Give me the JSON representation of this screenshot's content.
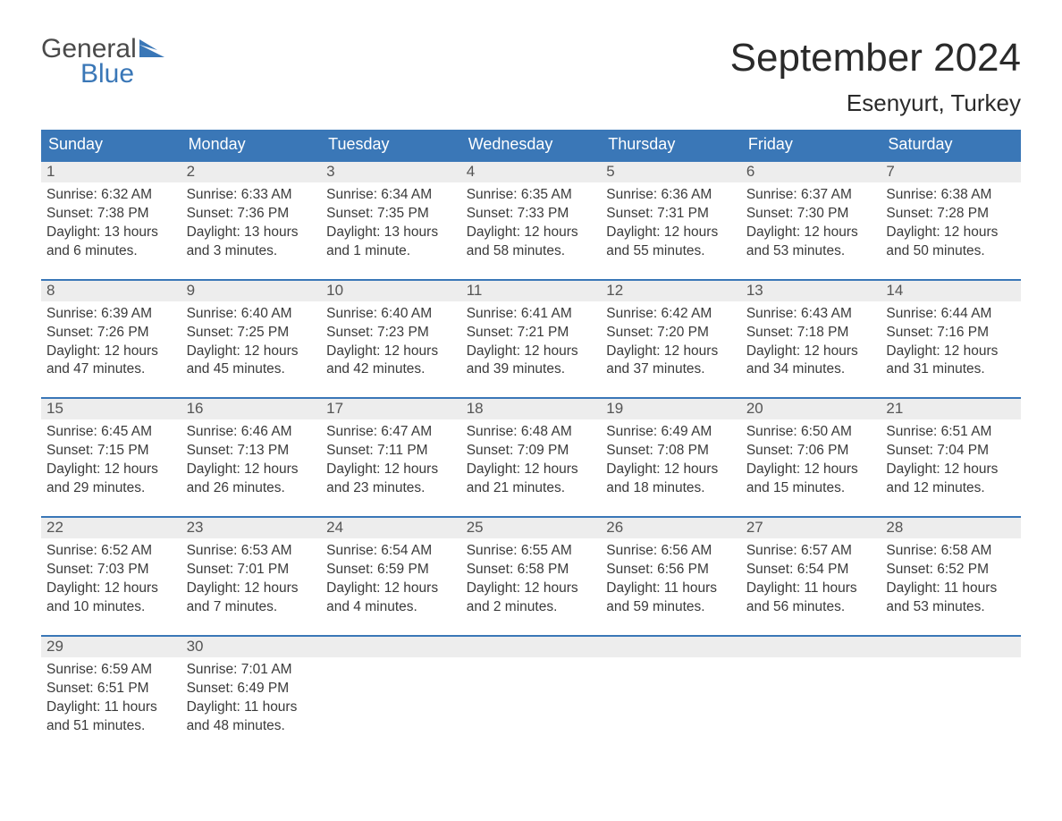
{
  "logo": {
    "line1": "General",
    "line2": "Blue"
  },
  "header": {
    "month": "September 2024",
    "location": "Esenyurt, Turkey"
  },
  "colors": {
    "brand_blue": "#3a77b7",
    "header_bg": "#3a77b7",
    "header_text": "#ffffff",
    "daynum_bg": "#ededed",
    "daynum_text": "#555555",
    "body_text": "#3a3a3a",
    "page_bg": "#ffffff",
    "week_border": "#3a77b7"
  },
  "typography": {
    "month_title_fontsize": 44,
    "location_fontsize": 26,
    "weekday_fontsize": 18,
    "daynum_fontsize": 17,
    "cell_fontsize": 15.5,
    "logo_fontsize": 30
  },
  "weekdays": [
    "Sunday",
    "Monday",
    "Tuesday",
    "Wednesday",
    "Thursday",
    "Friday",
    "Saturday"
  ],
  "weeks": [
    [
      {
        "n": "1",
        "sunrise": "Sunrise: 6:32 AM",
        "sunset": "Sunset: 7:38 PM",
        "day1": "Daylight: 13 hours",
        "day2": "and 6 minutes."
      },
      {
        "n": "2",
        "sunrise": "Sunrise: 6:33 AM",
        "sunset": "Sunset: 7:36 PM",
        "day1": "Daylight: 13 hours",
        "day2": "and 3 minutes."
      },
      {
        "n": "3",
        "sunrise": "Sunrise: 6:34 AM",
        "sunset": "Sunset: 7:35 PM",
        "day1": "Daylight: 13 hours",
        "day2": "and 1 minute."
      },
      {
        "n": "4",
        "sunrise": "Sunrise: 6:35 AM",
        "sunset": "Sunset: 7:33 PM",
        "day1": "Daylight: 12 hours",
        "day2": "and 58 minutes."
      },
      {
        "n": "5",
        "sunrise": "Sunrise: 6:36 AM",
        "sunset": "Sunset: 7:31 PM",
        "day1": "Daylight: 12 hours",
        "day2": "and 55 minutes."
      },
      {
        "n": "6",
        "sunrise": "Sunrise: 6:37 AM",
        "sunset": "Sunset: 7:30 PM",
        "day1": "Daylight: 12 hours",
        "day2": "and 53 minutes."
      },
      {
        "n": "7",
        "sunrise": "Sunrise: 6:38 AM",
        "sunset": "Sunset: 7:28 PM",
        "day1": "Daylight: 12 hours",
        "day2": "and 50 minutes."
      }
    ],
    [
      {
        "n": "8",
        "sunrise": "Sunrise: 6:39 AM",
        "sunset": "Sunset: 7:26 PM",
        "day1": "Daylight: 12 hours",
        "day2": "and 47 minutes."
      },
      {
        "n": "9",
        "sunrise": "Sunrise: 6:40 AM",
        "sunset": "Sunset: 7:25 PM",
        "day1": "Daylight: 12 hours",
        "day2": "and 45 minutes."
      },
      {
        "n": "10",
        "sunrise": "Sunrise: 6:40 AM",
        "sunset": "Sunset: 7:23 PM",
        "day1": "Daylight: 12 hours",
        "day2": "and 42 minutes."
      },
      {
        "n": "11",
        "sunrise": "Sunrise: 6:41 AM",
        "sunset": "Sunset: 7:21 PM",
        "day1": "Daylight: 12 hours",
        "day2": "and 39 minutes."
      },
      {
        "n": "12",
        "sunrise": "Sunrise: 6:42 AM",
        "sunset": "Sunset: 7:20 PM",
        "day1": "Daylight: 12 hours",
        "day2": "and 37 minutes."
      },
      {
        "n": "13",
        "sunrise": "Sunrise: 6:43 AM",
        "sunset": "Sunset: 7:18 PM",
        "day1": "Daylight: 12 hours",
        "day2": "and 34 minutes."
      },
      {
        "n": "14",
        "sunrise": "Sunrise: 6:44 AM",
        "sunset": "Sunset: 7:16 PM",
        "day1": "Daylight: 12 hours",
        "day2": "and 31 minutes."
      }
    ],
    [
      {
        "n": "15",
        "sunrise": "Sunrise: 6:45 AM",
        "sunset": "Sunset: 7:15 PM",
        "day1": "Daylight: 12 hours",
        "day2": "and 29 minutes."
      },
      {
        "n": "16",
        "sunrise": "Sunrise: 6:46 AM",
        "sunset": "Sunset: 7:13 PM",
        "day1": "Daylight: 12 hours",
        "day2": "and 26 minutes."
      },
      {
        "n": "17",
        "sunrise": "Sunrise: 6:47 AM",
        "sunset": "Sunset: 7:11 PM",
        "day1": "Daylight: 12 hours",
        "day2": "and 23 minutes."
      },
      {
        "n": "18",
        "sunrise": "Sunrise: 6:48 AM",
        "sunset": "Sunset: 7:09 PM",
        "day1": "Daylight: 12 hours",
        "day2": "and 21 minutes."
      },
      {
        "n": "19",
        "sunrise": "Sunrise: 6:49 AM",
        "sunset": "Sunset: 7:08 PM",
        "day1": "Daylight: 12 hours",
        "day2": "and 18 minutes."
      },
      {
        "n": "20",
        "sunrise": "Sunrise: 6:50 AM",
        "sunset": "Sunset: 7:06 PM",
        "day1": "Daylight: 12 hours",
        "day2": "and 15 minutes."
      },
      {
        "n": "21",
        "sunrise": "Sunrise: 6:51 AM",
        "sunset": "Sunset: 7:04 PM",
        "day1": "Daylight: 12 hours",
        "day2": "and 12 minutes."
      }
    ],
    [
      {
        "n": "22",
        "sunrise": "Sunrise: 6:52 AM",
        "sunset": "Sunset: 7:03 PM",
        "day1": "Daylight: 12 hours",
        "day2": "and 10 minutes."
      },
      {
        "n": "23",
        "sunrise": "Sunrise: 6:53 AM",
        "sunset": "Sunset: 7:01 PM",
        "day1": "Daylight: 12 hours",
        "day2": "and 7 minutes."
      },
      {
        "n": "24",
        "sunrise": "Sunrise: 6:54 AM",
        "sunset": "Sunset: 6:59 PM",
        "day1": "Daylight: 12 hours",
        "day2": "and 4 minutes."
      },
      {
        "n": "25",
        "sunrise": "Sunrise: 6:55 AM",
        "sunset": "Sunset: 6:58 PM",
        "day1": "Daylight: 12 hours",
        "day2": "and 2 minutes."
      },
      {
        "n": "26",
        "sunrise": "Sunrise: 6:56 AM",
        "sunset": "Sunset: 6:56 PM",
        "day1": "Daylight: 11 hours",
        "day2": "and 59 minutes."
      },
      {
        "n": "27",
        "sunrise": "Sunrise: 6:57 AM",
        "sunset": "Sunset: 6:54 PM",
        "day1": "Daylight: 11 hours",
        "day2": "and 56 minutes."
      },
      {
        "n": "28",
        "sunrise": "Sunrise: 6:58 AM",
        "sunset": "Sunset: 6:52 PM",
        "day1": "Daylight: 11 hours",
        "day2": "and 53 minutes."
      }
    ],
    [
      {
        "n": "29",
        "sunrise": "Sunrise: 6:59 AM",
        "sunset": "Sunset: 6:51 PM",
        "day1": "Daylight: 11 hours",
        "day2": "and 51 minutes."
      },
      {
        "n": "30",
        "sunrise": "Sunrise: 7:01 AM",
        "sunset": "Sunset: 6:49 PM",
        "day1": "Daylight: 11 hours",
        "day2": "and 48 minutes."
      },
      null,
      null,
      null,
      null,
      null
    ]
  ]
}
